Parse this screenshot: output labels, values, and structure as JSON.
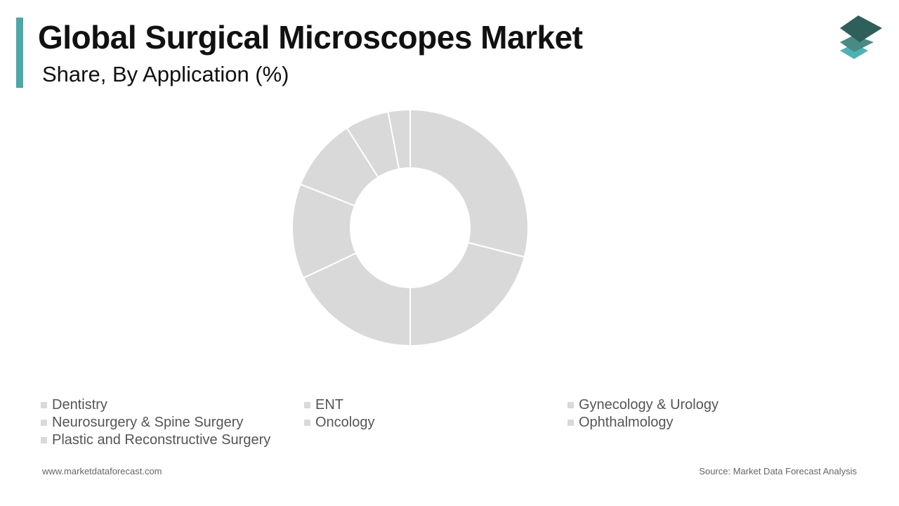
{
  "header": {
    "title": "Global Surgical Microscopes Market",
    "subtitle": "Share, By Application (%)"
  },
  "colors": {
    "accent": "#4aa8a8",
    "slice": "#d9d9d9",
    "swatch": "#d9d9d9",
    "slice_border": "#ffffff",
    "logo_dark": "#2f5f5a",
    "logo_mid": "#4a8a84",
    "logo_light": "#4bb3b3"
  },
  "logo": {
    "icon": "stacked-layers-icon"
  },
  "chart_data": {
    "type": "pie",
    "variant": "donut",
    "title": "Share, By Application (%)",
    "categories": [
      "Dentistry",
      "ENT",
      "Gynecology & Urology",
      "Neurosurgery & Spine Surgery",
      "Oncology",
      "Ophthalmology",
      "Plastic and Reconstructive Surgery"
    ],
    "values": [
      29,
      21,
      18,
      13,
      10,
      6,
      3
    ],
    "legend_position": "bottom",
    "legend": [
      "Dentistry",
      "ENT",
      "Gynecology & Urology",
      "Neurosurgery & Spine Surgery",
      "Oncology",
      "Ophthalmology",
      "Plastic and Reconstructive Surgery"
    ]
  },
  "footer": {
    "website": "www.marketdataforecast.com",
    "source": "Source: Market Data Forecast Analysis"
  }
}
